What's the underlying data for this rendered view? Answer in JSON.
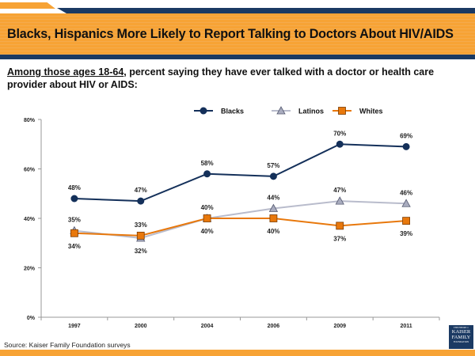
{
  "header": {
    "title": "Blacks, Hispanics More Likely to Report Talking to Doctors About HIV/AIDS",
    "subtitle_underlined": "Among those ages 18-64",
    "subtitle_rest": ", percent saying they have ever talked with a doctor or health care provider about HIV or AIDS:"
  },
  "footer": {
    "source": "Source: Kaiser Family Foundation surveys",
    "logo_text": "THE HENRY J. KAISER FAMILY FOUNDATION"
  },
  "colors": {
    "brand_orange": "#f7a335",
    "brand_navy": "#1b3a63"
  },
  "chart_data": {
    "type": "line",
    "categories": [
      "1997",
      "2000",
      "2004",
      "2006",
      "2009",
      "2011"
    ],
    "ylim": [
      0,
      80
    ],
    "yticks": [
      "0%",
      "20%",
      "40%",
      "60%",
      "80%"
    ],
    "grid": false,
    "legend_placement": "top",
    "series": [
      {
        "name": "Blacks",
        "values": [
          48,
          47,
          58,
          57,
          70,
          69
        ],
        "labels": [
          "48%",
          "47%",
          "58%",
          "57%",
          "70%",
          "69%"
        ],
        "color": "#14305a",
        "marker": "circle"
      },
      {
        "name": "Latinos",
        "values": [
          35,
          32,
          40,
          44,
          47,
          46
        ],
        "labels": [
          "35%",
          "32%",
          "40%",
          "44%",
          "47%",
          "46%"
        ],
        "color": "#b9bccc",
        "marker": "triangle"
      },
      {
        "name": "Whites",
        "values": [
          34,
          33,
          40,
          40,
          37,
          39
        ],
        "labels": [
          "34%",
          "33%",
          "40%",
          "40%",
          "37%",
          "39%"
        ],
        "color": "#e8780c",
        "marker": "square"
      }
    ]
  }
}
